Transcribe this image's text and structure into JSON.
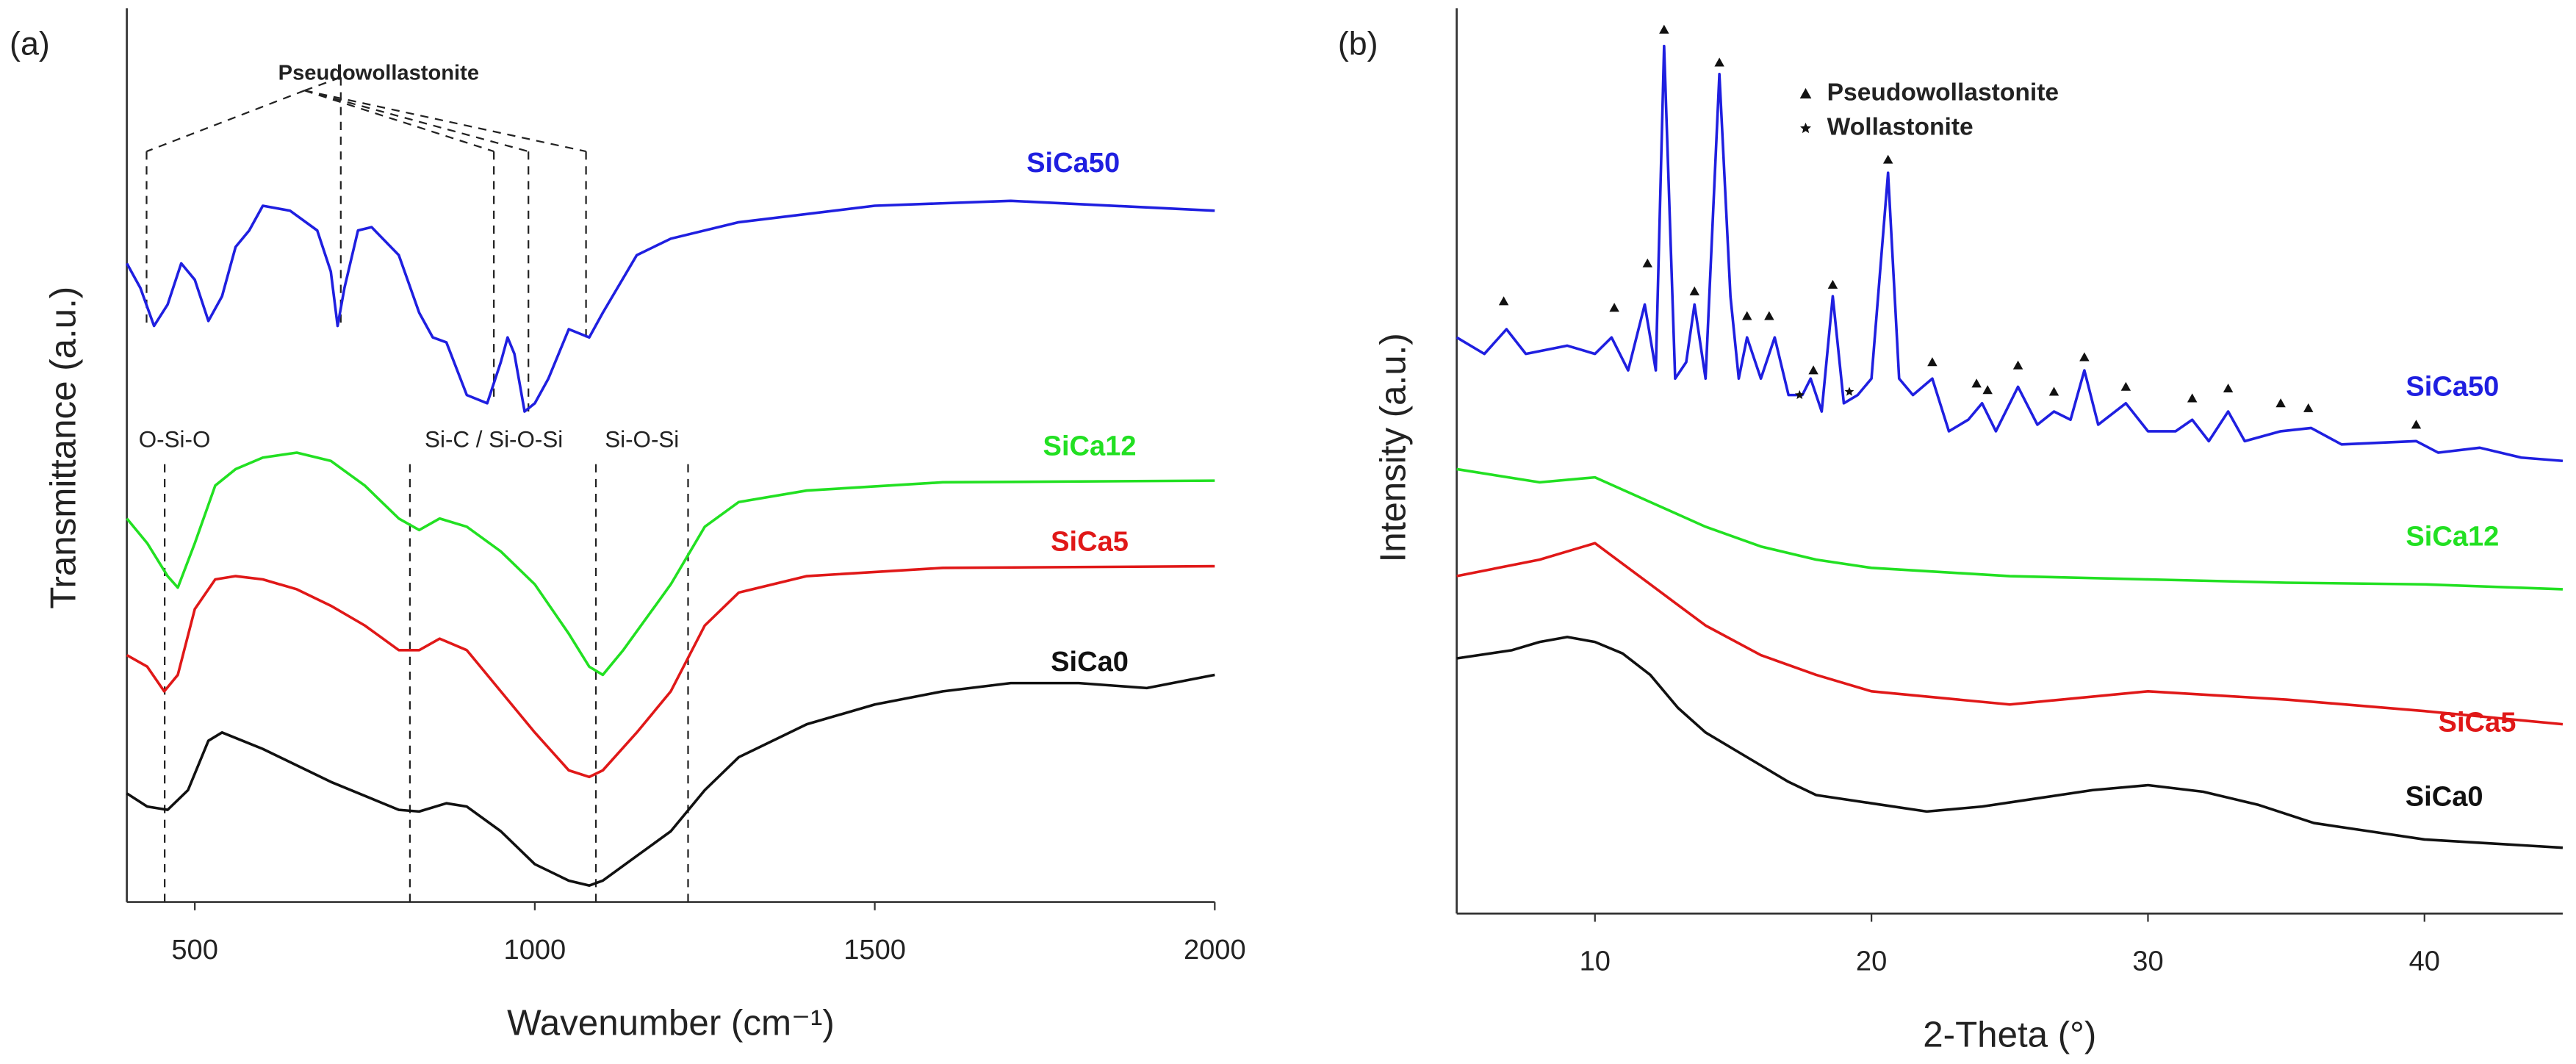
{
  "chart_data": [
    {
      "type": "line",
      "panel": "(a)",
      "xlabel": "Wavenumber (cm⁻¹)",
      "ylabel": "Transmittance (a.u.)",
      "xlim": [
        400,
        2000
      ],
      "xticks": [
        500,
        1000,
        1500,
        2000
      ],
      "ylim": [
        0,
        543
      ],
      "annotations": [
        "Pseudowollastonite",
        "O-Si-O",
        "Si-C / Si-O-Si",
        "Si-O-Si"
      ],
      "series": [
        {
          "name": "SiCa50",
          "color": "#1f1fe0",
          "x": [
            400,
            420,
            440,
            460,
            480,
            500,
            520,
            540,
            560,
            580,
            600,
            640,
            680,
            700,
            710,
            720,
            740,
            760,
            800,
            830,
            850,
            870,
            900,
            930,
            950,
            960,
            970,
            985,
            1000,
            1020,
            1050,
            1080,
            1100,
            1150,
            1200,
            1300,
            1500,
            1700,
            2000
          ],
          "values": [
            388,
            373,
            350,
            363,
            388,
            378,
            353,
            368,
            398,
            408,
            423,
            420,
            408,
            383,
            350,
            373,
            408,
            410,
            393,
            358,
            343,
            340,
            308,
            303,
            328,
            343,
            333,
            298,
            303,
            318,
            348,
            343,
            358,
            393,
            403,
            413,
            423,
            426,
            420
          ]
        },
        {
          "name": "SiCa12",
          "color": "#22e022",
          "x": [
            400,
            430,
            460,
            475,
            500,
            530,
            560,
            600,
            650,
            700,
            750,
            800,
            830,
            860,
            900,
            950,
            1000,
            1050,
            1080,
            1100,
            1130,
            1200,
            1250,
            1300,
            1400,
            1600,
            2000
          ],
          "values": [
            233,
            218,
            198,
            191,
            218,
            253,
            263,
            270,
            273,
            268,
            253,
            233,
            226,
            233,
            228,
            213,
            193,
            163,
            143,
            138,
            153,
            193,
            228,
            243,
            250,
            255,
            256
          ]
        },
        {
          "name": "SiCa5",
          "color": "#e01818",
          "x": [
            400,
            430,
            455,
            475,
            500,
            530,
            560,
            600,
            650,
            700,
            750,
            800,
            830,
            860,
            900,
            950,
            1000,
            1050,
            1080,
            1100,
            1150,
            1200,
            1250,
            1300,
            1400,
            1600,
            2000
          ],
          "values": [
            150,
            143,
            128,
            138,
            178,
            196,
            198,
            196,
            190,
            180,
            168,
            153,
            153,
            160,
            153,
            128,
            103,
            80,
            76,
            80,
            103,
            128,
            168,
            188,
            198,
            203,
            204
          ]
        },
        {
          "name": "SiCa0",
          "color": "#111111",
          "x": [
            400,
            430,
            460,
            490,
            520,
            540,
            600,
            700,
            800,
            830,
            870,
            900,
            950,
            1000,
            1050,
            1080,
            1100,
            1150,
            1200,
            1250,
            1300,
            1400,
            1500,
            1600,
            1700,
            1800,
            1900,
            2000
          ],
          "values": [
            66,
            58,
            56,
            68,
            98,
            103,
            93,
            73,
            56,
            55,
            60,
            58,
            43,
            23,
            13,
            10,
            13,
            28,
            43,
            68,
            88,
            108,
            120,
            128,
            133,
            133,
            130,
            138
          ]
        }
      ]
    },
    {
      "type": "line",
      "panel": "(b)",
      "xlabel": "2-Theta (°)",
      "ylabel": "Intensity (a.u.)",
      "xlim": [
        5,
        45
      ],
      "xticks": [
        10,
        20,
        30,
        40
      ],
      "ylim": [
        0,
        550
      ],
      "series": [
        {
          "name": "SiCa50",
          "color": "#1f1fe0",
          "x": [
            5,
            6,
            6.8,
            7.5,
            9,
            10,
            10.6,
            11.2,
            11.8,
            12.2,
            12.5,
            12.9,
            13.3,
            13.6,
            14,
            14.5,
            14.9,
            15.2,
            15.5,
            16,
            16.5,
            17,
            17.5,
            17.8,
            18.2,
            18.6,
            19,
            19.5,
            20,
            20.6,
            21,
            21.5,
            22.2,
            22.8,
            23.5,
            24,
            24.5,
            25.3,
            26,
            26.6,
            27.2,
            27.7,
            28.2,
            29.2,
            30,
            31,
            31.6,
            32.2,
            32.9,
            33.5,
            34.8,
            35.9,
            37,
            39.7,
            40.5,
            42,
            43.5,
            45
          ],
          "values": [
            350,
            340,
            355,
            340,
            345,
            340,
            350,
            330,
            370,
            330,
            527,
            325,
            335,
            370,
            325,
            510,
            375,
            325,
            350,
            325,
            350,
            315,
            315,
            325,
            305,
            375,
            310,
            315,
            325,
            450,
            325,
            315,
            325,
            293,
            300,
            310,
            293,
            320,
            297,
            305,
            300,
            330,
            297,
            310,
            293,
            293,
            300,
            287,
            305,
            287,
            293,
            295,
            285,
            287,
            280,
            283,
            277,
            275
          ]
        },
        {
          "name": "SiCa12",
          "color": "#22e022",
          "x": [
            5,
            8,
            10,
            12,
            14,
            16,
            18,
            20,
            25,
            30,
            35,
            40,
            45
          ],
          "values": [
            270,
            262,
            265,
            250,
            235,
            223,
            215,
            210,
            205,
            203,
            201,
            200,
            197
          ]
        },
        {
          "name": "SiCa5",
          "color": "#e01818",
          "x": [
            5,
            8,
            10,
            12,
            14,
            16,
            18,
            20,
            25,
            30,
            35,
            40,
            45
          ],
          "values": [
            205,
            215,
            225,
            200,
            175,
            157,
            145,
            135,
            127,
            135,
            130,
            123,
            115
          ]
        },
        {
          "name": "SiCa0",
          "color": "#111111",
          "x": [
            5,
            7,
            8,
            9,
            10,
            11,
            12,
            13,
            14,
            15,
            16,
            17,
            18,
            20,
            22,
            24,
            26,
            28,
            30,
            32,
            34,
            36,
            38,
            40,
            42,
            45
          ],
          "values": [
            155,
            160,
            165,
            168,
            165,
            158,
            145,
            125,
            110,
            100,
            90,
            80,
            72,
            67,
            62,
            65,
            70,
            75,
            78,
            74,
            66,
            55,
            50,
            45,
            43,
            40
          ]
        }
      ],
      "markers": [
        {
          "name": "Pseudowollastonite",
          "shape": "triangle",
          "x": [
            6.7,
            10.7,
            11.9,
            12.5,
            13.6,
            14.5,
            15.5,
            16.3,
            17.9,
            18.6,
            20.6,
            22.2,
            23.8,
            24.2,
            25.3,
            26.6,
            27.7,
            29.2,
            31.6,
            32.9,
            34.8,
            35.8,
            39.7
          ],
          "values": [
            372,
            368,
            395,
            537,
            378,
            517,
            363,
            363,
            330,
            382,
            458,
            335,
            322,
            318,
            333,
            317,
            338,
            320,
            313,
            319,
            310,
            307,
            297
          ]
        },
        {
          "name": "Wollastonite",
          "shape": "star",
          "x": [
            17.4,
            19.2
          ],
          "values": [
            315,
            317
          ]
        }
      ]
    }
  ]
}
